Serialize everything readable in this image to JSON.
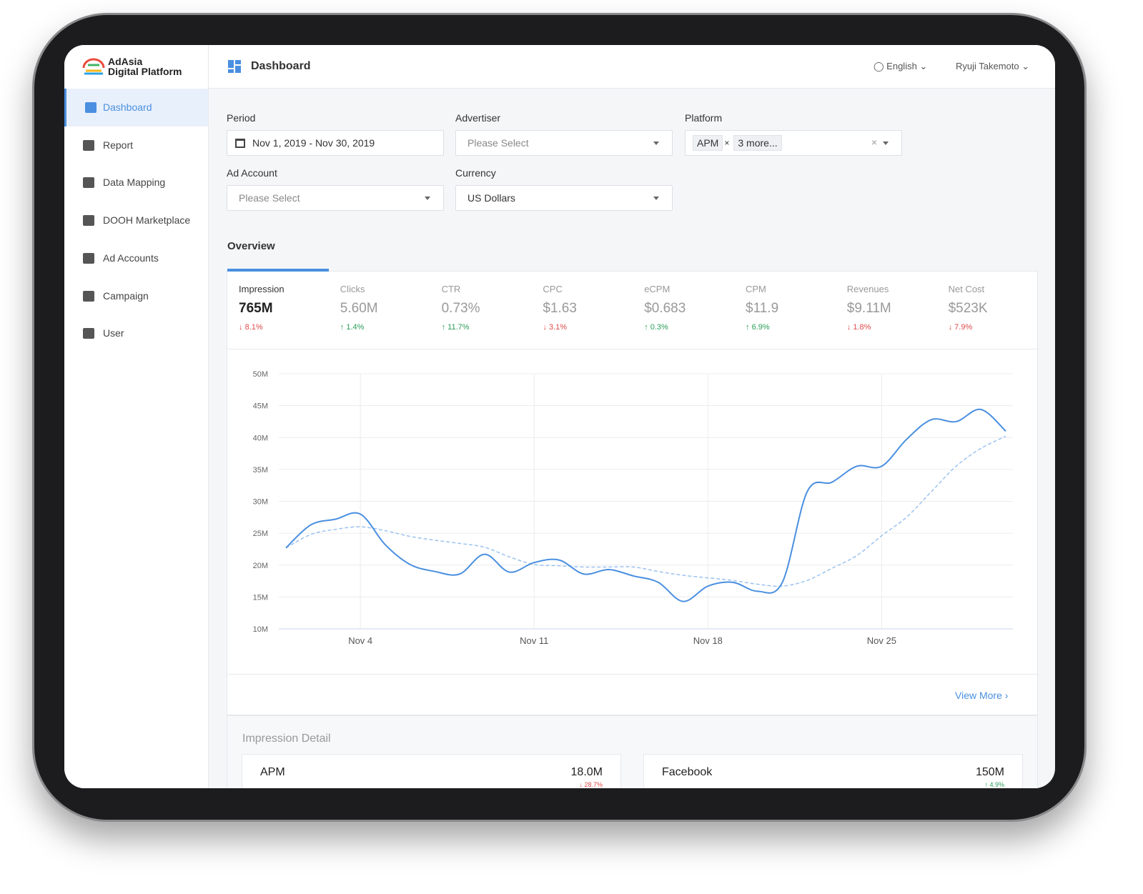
{
  "sidebar": {
    "logo": [
      "AdAsia",
      "Digital Platform"
    ],
    "menu": [
      "Dashboard",
      "Report",
      "Data Mapping",
      "DOOH Marketplace",
      "Ad Accounts",
      "Campaign",
      "User"
    ],
    "active": 0
  },
  "header": {
    "title": "Dashboard",
    "language": "English",
    "user": "Ryuji Takemoto"
  },
  "filters": [
    {
      "label": "Period",
      "value": "Nov 1, 2019 - Nov 30, 2019"
    },
    {
      "label": "Advertiser",
      "placeholder": "Please Select"
    },
    {
      "label": "Platform",
      "tags": [
        "APM",
        "3 more..."
      ]
    },
    {
      "label": "Ad Account",
      "placeholder": "Please Select"
    },
    {
      "label": "Currency",
      "value": "US Dollars"
    }
  ],
  "overview": {
    "title": "Overview",
    "metrics": [
      {
        "name": "Impression",
        "value": "765M",
        "change": "8.1%",
        "direction": "down"
      },
      {
        "name": "Clicks",
        "value": "5.60M",
        "change": "1.4%",
        "direction": "up"
      },
      {
        "name": "CTR",
        "value": "0.73%",
        "change": "11.7%",
        "direction": "up"
      },
      {
        "name": "CPC",
        "value": "$1.63",
        "change": "3.1%",
        "direction": "down"
      },
      {
        "name": "eCPM",
        "value": "$0.683",
        "change": "0.3%",
        "direction": "up"
      },
      {
        "name": "CPM",
        "value": "$11.9",
        "change": "6.9%",
        "direction": "up"
      },
      {
        "name": "Revenues",
        "value": "$9.11M",
        "change": "1.8%",
        "direction": "down"
      },
      {
        "name": "Net Cost",
        "value": "$523K",
        "change": "7.9%",
        "direction": "down"
      }
    ],
    "active": 0
  },
  "chart": {
    "type": "line",
    "x": [
      1,
      2,
      3,
      4,
      5,
      6,
      7,
      8,
      9,
      10,
      11,
      12,
      13,
      14,
      15,
      16,
      17,
      18,
      19,
      20,
      21,
      22,
      23,
      24,
      25,
      26,
      27,
      28,
      29,
      30
    ],
    "series": [
      {
        "color": "#4a8fe0",
        "dashed": false,
        "values": [
          22.7,
          26.3,
          27.2,
          28.0,
          23.2,
          20.1,
          19.0,
          18.6,
          21.7,
          18.9,
          20.4,
          20.8,
          18.6,
          19.3,
          18.3,
          17.3,
          14.3,
          16.7,
          17.3,
          15.9,
          17.3,
          31.5,
          33.0,
          35.5,
          35.5,
          39.7,
          42.8,
          42.5,
          44.4,
          41.0
        ]
      },
      {
        "color": "#9cc2ef",
        "dashed": true,
        "values": [
          22.7,
          24.8,
          25.6,
          26.0,
          25.4,
          24.5,
          23.9,
          23.4,
          22.8,
          21.3,
          20.1,
          19.9,
          19.7,
          19.7,
          19.7,
          19.0,
          18.4,
          18.0,
          17.6,
          17.0,
          16.7,
          17.6,
          19.5,
          21.5,
          24.6,
          27.5,
          31.5,
          35.5,
          38.3,
          40.2
        ]
      }
    ],
    "xlim": [
      1,
      30
    ],
    "xticks": [
      {
        "value": 4,
        "label": "Nov 4"
      },
      {
        "value": 11,
        "label": "Nov 11"
      },
      {
        "value": 18,
        "label": "Nov 18"
      },
      {
        "value": 25,
        "label": "Nov 25"
      }
    ],
    "ylim": [
      10,
      50
    ],
    "yticks": [
      {
        "value": 10,
        "label": "10M"
      },
      {
        "value": 15,
        "label": "15M"
      },
      {
        "value": 20,
        "label": "20M"
      },
      {
        "value": 25,
        "label": "25M"
      },
      {
        "value": 30,
        "label": "30M"
      },
      {
        "value": 35,
        "label": "35M"
      },
      {
        "value": 40,
        "label": "40M"
      },
      {
        "value": 45,
        "label": "45M"
      },
      {
        "value": 50,
        "label": "50M"
      }
    ],
    "grid": true
  },
  "view_more": "View More",
  "impression_detail": {
    "title": "Impression Detail",
    "cards": [
      {
        "name": "APM",
        "value": "18.0M",
        "change": "28.7%",
        "direction": "down"
      },
      {
        "name": "Facebook",
        "value": "150M",
        "change": "4.9%",
        "direction": "up"
      }
    ]
  }
}
